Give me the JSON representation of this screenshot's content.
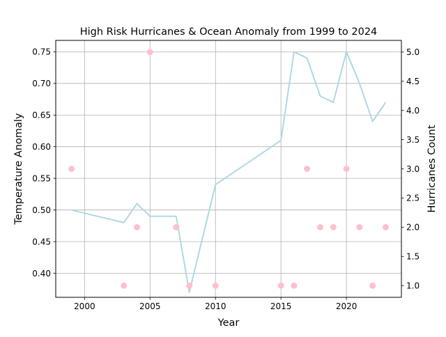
{
  "chart_data": {
    "type": "line",
    "title": "High Risk Hurricanes & Ocean Anomaly from 1999 to 2024",
    "xlabel": "Year",
    "ylabel_left": "Temperature Anomaly",
    "ylabel_right": "Hurricanes Count",
    "xlim": [
      1997.8,
      2024.2
    ],
    "ylim_left": [
      0.362,
      0.768
    ],
    "ylim_right": [
      0.8,
      5.2
    ],
    "xticks": [
      2000,
      2005,
      2010,
      2015,
      2020
    ],
    "yticks_left": [
      0.4,
      0.45,
      0.5,
      0.55,
      0.6,
      0.65,
      0.7,
      0.75
    ],
    "yticks_left_labels": [
      "0.40",
      "0.45",
      "0.50",
      "0.55",
      "0.60",
      "0.65",
      "0.70",
      "0.75"
    ],
    "yticks_right": [
      1.0,
      1.5,
      2.0,
      2.5,
      3.0,
      3.5,
      4.0,
      4.5,
      5.0
    ],
    "yticks_right_labels": [
      "1.0",
      "1.5",
      "2.0",
      "2.5",
      "3.0",
      "3.5",
      "4.0",
      "4.5",
      "5.0"
    ],
    "grid": true,
    "colors": {
      "line": "#add8e6",
      "points": "#ffc0cb",
      "grid": "#b0b0b0"
    },
    "series": [
      {
        "axis": "left",
        "style": "line",
        "x": [
          1999,
          2003,
          2004,
          2005,
          2007,
          2008,
          2010,
          2015,
          2016,
          2017,
          2018,
          2019,
          2020,
          2021,
          2022,
          2023
        ],
        "y": [
          0.5,
          0.48,
          0.51,
          0.49,
          0.49,
          0.37,
          0.54,
          0.61,
          0.75,
          0.74,
          0.68,
          0.67,
          0.75,
          0.7,
          0.64,
          0.67
        ]
      },
      {
        "axis": "right",
        "style": "scatter",
        "x": [
          1999,
          2003,
          2004,
          2005,
          2007,
          2008,
          2010,
          2015,
          2016,
          2017,
          2018,
          2019,
          2020,
          2021,
          2022,
          2023
        ],
        "y": [
          3,
          1,
          2,
          5,
          2,
          1,
          1,
          1,
          1,
          3,
          2,
          2,
          3,
          2,
          1,
          2
        ]
      }
    ]
  }
}
